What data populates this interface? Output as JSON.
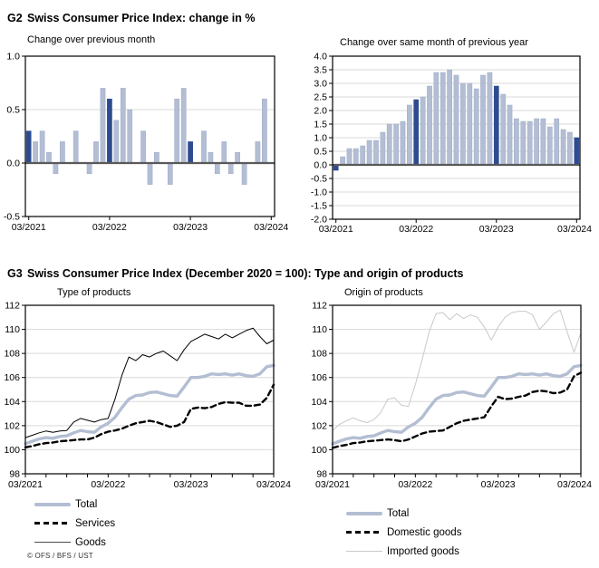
{
  "g2": {
    "label": "G2",
    "title": "Swiss Consumer Price Index: change in %"
  },
  "g3": {
    "label": "G3",
    "title": "Swiss Consumer Price Index (December 2020 = 100): Type and origin of products"
  },
  "footer": {
    "copyright": "© OFS / BFS / UST"
  },
  "colors": {
    "dark_bar": "#2d4b8f",
    "light_bar": "#b3bed4",
    "light_bar_edge": "#9fabc6",
    "total_line": "#b3bed2",
    "imported_line": "#c9c9c9",
    "black_line": "#000000",
    "grid": "#d9d9d9",
    "zero_line": "#595959",
    "frame": "#000000"
  },
  "months": [
    "03/2021",
    "04/2021",
    "05/2021",
    "06/2021",
    "07/2021",
    "08/2021",
    "09/2021",
    "10/2021",
    "11/2021",
    "12/2021",
    "01/2022",
    "02/2022",
    "03/2022",
    "04/2022",
    "05/2022",
    "06/2022",
    "07/2022",
    "08/2022",
    "09/2022",
    "10/2022",
    "11/2022",
    "12/2022",
    "01/2023",
    "02/2023",
    "03/2023",
    "04/2023",
    "05/2023",
    "06/2023",
    "07/2023",
    "08/2023",
    "09/2023",
    "10/2023",
    "11/2023",
    "12/2023",
    "01/2024",
    "02/2024",
    "03/2024"
  ],
  "chart_data": [
    {
      "type": "bar",
      "subtitle": "Change over previous month",
      "ylim": [
        -0.5,
        1.0
      ],
      "yticks": [
        "1.0",
        "0.5",
        "0.0",
        "-0.5"
      ],
      "x_labels_shown": [
        "03/2021",
        "03/2022",
        "03/2023",
        "03/2024"
      ],
      "highlight_rule": "bars for March months are dark blue",
      "values": [
        0.3,
        0.2,
        0.3,
        0.1,
        -0.1,
        0.2,
        0.0,
        0.3,
        0.0,
        -0.1,
        0.2,
        0.7,
        0.6,
        0.4,
        0.7,
        0.5,
        0.0,
        0.3,
        -0.2,
        0.1,
        0.0,
        -0.2,
        0.6,
        0.7,
        0.2,
        0.0,
        0.3,
        0.1,
        -0.1,
        0.2,
        -0.1,
        0.1,
        -0.2,
        0.0,
        0.2,
        0.6,
        0.0
      ]
    },
    {
      "type": "bar",
      "subtitle": "Change over same month of previous year",
      "ylim": [
        -2.0,
        4.0
      ],
      "yticks": [
        "4.0",
        "3.5",
        "3.0",
        "2.5",
        "2.0",
        "1.5",
        "1.0",
        "0.5",
        "0.0",
        "-0.5",
        "-1.0",
        "-1.5",
        "-2.0"
      ],
      "x_labels_shown": [
        "03/2021",
        "03/2022",
        "03/2023",
        "03/2024"
      ],
      "highlight_rule": "bars for March months are dark blue",
      "values": [
        -0.2,
        0.3,
        0.6,
        0.6,
        0.7,
        0.9,
        0.9,
        1.2,
        1.5,
        1.5,
        1.6,
        2.2,
        2.4,
        2.5,
        2.9,
        3.4,
        3.4,
        3.5,
        3.3,
        3.0,
        3.0,
        2.8,
        3.3,
        3.4,
        2.9,
        2.6,
        2.2,
        1.7,
        1.6,
        1.6,
        1.7,
        1.7,
        1.4,
        1.7,
        1.3,
        1.2,
        1.0
      ]
    },
    {
      "type": "line",
      "subtitle": "Type of products",
      "ylim": [
        98,
        112
      ],
      "yticks": [
        "112",
        "110",
        "108",
        "106",
        "104",
        "102",
        "100",
        "98"
      ],
      "x_labels_shown": [
        "03/2021",
        "03/2022",
        "03/2023",
        "03/2024"
      ],
      "series": [
        {
          "name": "Goods",
          "style": "thin-black",
          "values": [
            101.0,
            101.2,
            101.4,
            101.55,
            101.45,
            101.55,
            101.6,
            102.3,
            102.6,
            102.45,
            102.3,
            102.5,
            102.6,
            104.2,
            106.2,
            107.7,
            107.4,
            107.9,
            107.7,
            108.0,
            108.2,
            107.8,
            107.4,
            108.3,
            109.0,
            109.3,
            109.6,
            109.4,
            109.2,
            109.6,
            109.3,
            109.6,
            109.9,
            110.1,
            109.4,
            108.8,
            109.1
          ]
        },
        {
          "name": "Total",
          "style": "total",
          "values": [
            100.5,
            100.7,
            100.9,
            101.0,
            100.95,
            101.1,
            101.15,
            101.4,
            101.6,
            101.5,
            101.45,
            101.9,
            102.2,
            102.7,
            103.5,
            104.2,
            104.5,
            104.55,
            104.75,
            104.8,
            104.65,
            104.5,
            104.45,
            105.2,
            106.0,
            106.0,
            106.1,
            106.3,
            106.25,
            106.3,
            106.2,
            106.3,
            106.15,
            106.1,
            106.3,
            106.9,
            107.0
          ]
        },
        {
          "name": "Services",
          "style": "dashed",
          "values": [
            100.2,
            100.3,
            100.45,
            100.55,
            100.6,
            100.7,
            100.75,
            100.8,
            100.85,
            100.85,
            101.0,
            101.3,
            101.5,
            101.6,
            101.75,
            102.0,
            102.2,
            102.3,
            102.4,
            102.3,
            102.1,
            101.9,
            102.0,
            102.3,
            103.4,
            103.5,
            103.45,
            103.55,
            103.8,
            103.95,
            103.9,
            103.9,
            103.65,
            103.65,
            103.75,
            104.3,
            105.4
          ]
        }
      ],
      "legend": [
        {
          "label": "Total",
          "style": "total"
        },
        {
          "label": "Services",
          "style": "dashed"
        },
        {
          "label": "Goods",
          "style": "thin-black"
        }
      ]
    },
    {
      "type": "line",
      "subtitle": "Origin of products",
      "ylim": [
        98,
        112
      ],
      "yticks": [
        "112",
        "110",
        "108",
        "106",
        "104",
        "102",
        "100",
        "98"
      ],
      "x_labels_shown": [
        "03/2021",
        "03/2022",
        "03/2023",
        "03/2024"
      ],
      "series": [
        {
          "name": "Imported goods",
          "style": "thin-gray",
          "values": [
            101.6,
            102.1,
            102.4,
            102.65,
            102.4,
            102.25,
            102.5,
            103.1,
            104.2,
            104.3,
            103.7,
            103.6,
            105.4,
            107.5,
            109.8,
            111.3,
            111.4,
            110.8,
            111.3,
            110.9,
            111.2,
            111.0,
            110.2,
            109.1,
            110.2,
            111.0,
            111.4,
            111.5,
            111.5,
            111.2,
            110.0,
            110.6,
            111.3,
            111.6,
            109.8,
            108.1,
            109.7
          ]
        },
        {
          "name": "Total",
          "style": "total",
          "values": [
            100.5,
            100.7,
            100.9,
            101.0,
            100.95,
            101.1,
            101.15,
            101.4,
            101.6,
            101.5,
            101.45,
            101.9,
            102.2,
            102.7,
            103.5,
            104.2,
            104.5,
            104.55,
            104.75,
            104.8,
            104.65,
            104.5,
            104.45,
            105.2,
            106.0,
            106.0,
            106.1,
            106.3,
            106.25,
            106.3,
            106.2,
            106.3,
            106.15,
            106.1,
            106.3,
            106.9,
            107.0
          ]
        },
        {
          "name": "Domestic goods",
          "style": "dashed",
          "values": [
            100.15,
            100.3,
            100.4,
            100.55,
            100.6,
            100.7,
            100.75,
            100.8,
            100.85,
            100.8,
            100.7,
            100.85,
            101.1,
            101.35,
            101.5,
            101.55,
            101.6,
            101.9,
            102.2,
            102.4,
            102.5,
            102.6,
            102.7,
            103.6,
            104.4,
            104.2,
            104.25,
            104.4,
            104.5,
            104.8,
            104.9,
            104.85,
            104.7,
            104.75,
            105.0,
            106.1,
            106.4
          ]
        }
      ],
      "legend": [
        {
          "label": "Total",
          "style": "total"
        },
        {
          "label": "Domestic goods",
          "style": "dashed"
        },
        {
          "label": "Imported goods",
          "style": "thin-gray"
        }
      ]
    }
  ]
}
